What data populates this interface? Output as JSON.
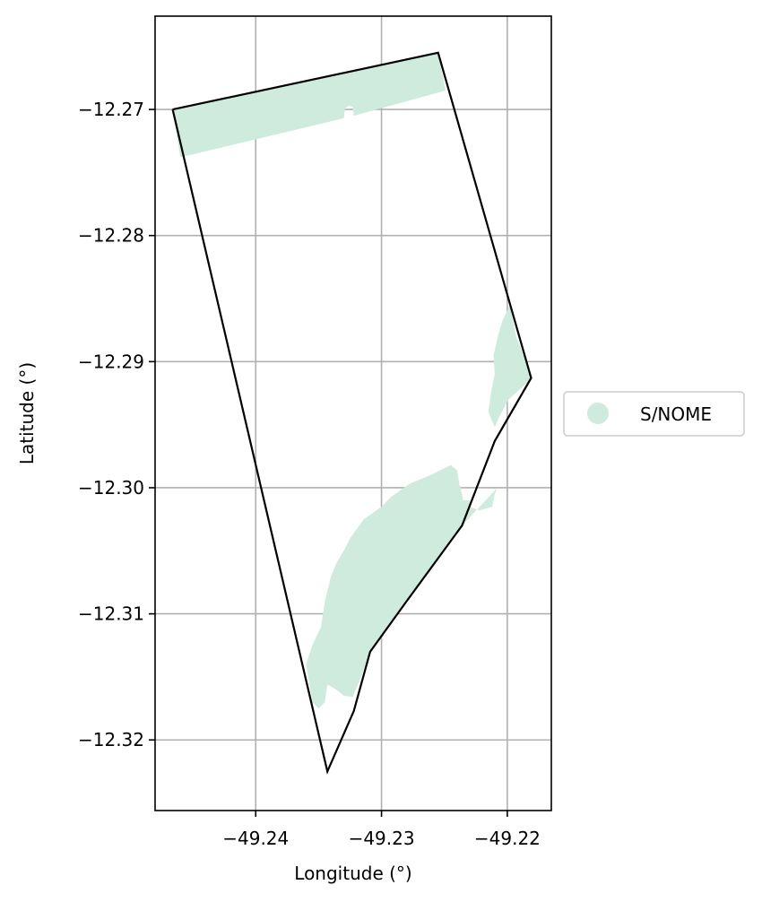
{
  "map": {
    "xlabel": "Longitude (°)",
    "ylabel": "Latitude (°)",
    "xlim": [
      -49.248,
      -49.2165
    ],
    "ylim": [
      -12.3256,
      -12.2626
    ],
    "grid": true,
    "x_ticks": [
      {
        "value": -49.24,
        "label": "−49.24"
      },
      {
        "value": -49.23,
        "label": "−49.23"
      },
      {
        "value": -49.22,
        "label": "−49.22"
      }
    ],
    "y_ticks": [
      {
        "value": -12.27,
        "label": "−12.27"
      },
      {
        "value": -12.28,
        "label": "−12.28"
      },
      {
        "value": -12.29,
        "label": "−12.29"
      },
      {
        "value": -12.3,
        "label": "−12.30"
      },
      {
        "value": -12.31,
        "label": "−12.31"
      },
      {
        "value": -12.32,
        "label": "−12.32"
      }
    ],
    "boundary_color": "#000000",
    "fill_color": "#cfebde",
    "boundary": [
      [
        -49.2466,
        -12.27
      ],
      [
        -49.2255,
        -12.2655
      ],
      [
        -49.2181,
        -12.2913
      ],
      [
        -49.221,
        -12.2963
      ],
      [
        -49.2236,
        -12.303
      ],
      [
        -49.228,
        -12.309
      ],
      [
        -49.2309,
        -12.313
      ],
      [
        -49.2322,
        -12.3177
      ],
      [
        -49.2343,
        -12.3225
      ],
      [
        -49.2466,
        -12.27
      ]
    ],
    "regions": [
      {
        "name": "S/NOME",
        "polygons": [
          [
            [
              -49.2466,
              -12.27
            ],
            [
              -49.2255,
              -12.2655
            ],
            [
              -49.2249,
              -12.2685
            ],
            [
              -49.2322,
              -12.2705
            ],
            [
              -49.2323,
              -12.2698
            ],
            [
              -49.2326,
              -12.2697
            ],
            [
              -49.2329,
              -12.2699
            ],
            [
              -49.233,
              -12.2707
            ],
            [
              -49.246,
              -12.2738
            ]
          ],
          [
            [
              -49.218,
              -12.2913
            ],
            [
              -49.2193,
              -12.288
            ],
            [
              -49.2198,
              -12.2855
            ],
            [
              -49.2204,
              -12.2868
            ],
            [
              -49.2207,
              -12.2878
            ],
            [
              -49.2211,
              -12.2895
            ],
            [
              -49.221,
              -12.291
            ],
            [
              -49.2213,
              -12.2925
            ],
            [
              -49.2215,
              -12.294
            ],
            [
              -49.221,
              -12.2952
            ],
            [
              -49.2206,
              -12.2943
            ],
            [
              -49.2199,
              -12.293
            ]
          ],
          [
            [
              -49.2208,
              -12.3
            ],
            [
              -49.2236,
              -12.303
            ],
            [
              -49.228,
              -12.309
            ],
            [
              -49.23,
              -12.3118
            ],
            [
              -49.2309,
              -12.313
            ],
            [
              -49.2317,
              -12.3152
            ],
            [
              -49.2323,
              -12.3166
            ],
            [
              -49.233,
              -12.3165
            ],
            [
              -49.2336,
              -12.316
            ],
            [
              -49.2343,
              -12.3156
            ],
            [
              -49.2345,
              -12.317
            ],
            [
              -49.235,
              -12.3175
            ],
            [
              -49.2355,
              -12.317
            ],
            [
              -49.236,
              -12.314
            ],
            [
              -49.2355,
              -12.3125
            ],
            [
              -49.2348,
              -12.311
            ],
            [
              -49.2345,
              -12.309
            ],
            [
              -49.234,
              -12.307
            ],
            [
              -49.2336,
              -12.306
            ],
            [
              -49.233,
              -12.305
            ],
            [
              -49.2325,
              -12.304
            ],
            [
              -49.2314,
              -12.3025
            ],
            [
              -49.23,
              -12.3015
            ],
            [
              -49.2292,
              -12.3007
            ],
            [
              -49.2278,
              -12.2997
            ],
            [
              -49.2261,
              -12.299
            ],
            [
              -49.2253,
              -12.2986
            ],
            [
              -49.2245,
              -12.2982
            ],
            [
              -49.224,
              -12.2986
            ],
            [
              -49.2238,
              -12.2998
            ],
            [
              -49.2237,
              -12.3
            ],
            [
              -49.2235,
              -12.301
            ],
            [
              -49.223,
              -12.301
            ],
            [
              -49.223,
              -12.3015
            ],
            [
              -49.2222,
              -12.3018
            ],
            [
              -49.2212,
              -12.3015
            ],
            [
              -49.221,
              -12.3005
            ]
          ]
        ]
      }
    ],
    "legend": {
      "entries": [
        {
          "label": "S/NOME",
          "color": "#cfebde"
        }
      ]
    }
  }
}
